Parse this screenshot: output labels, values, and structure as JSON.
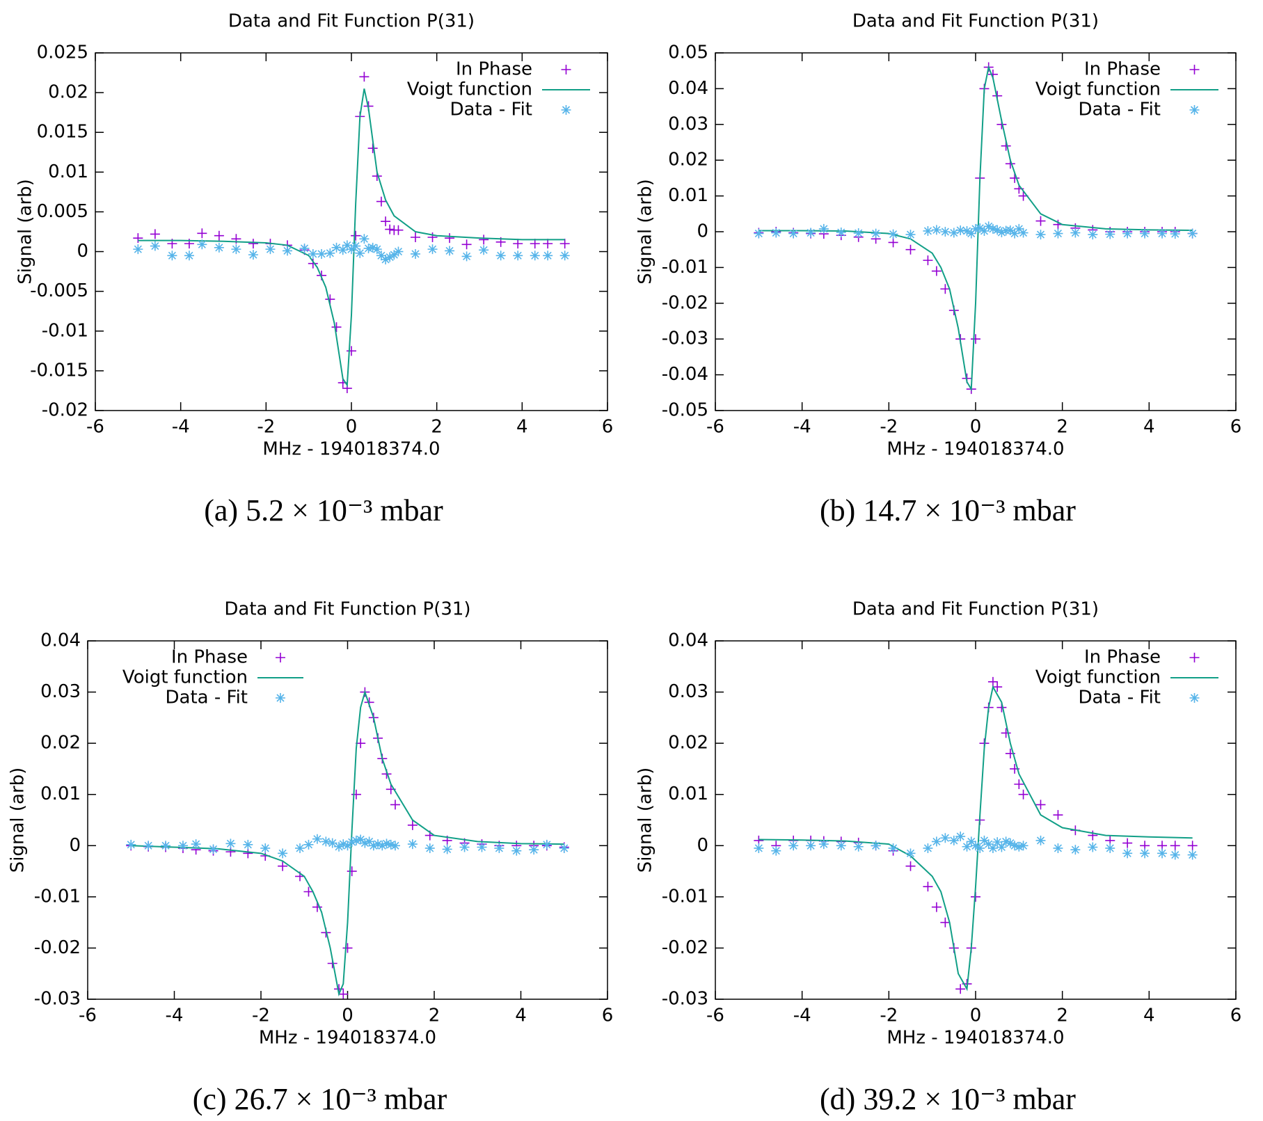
{
  "chart_data": [
    {
      "type": "scatter",
      "title": "Data and Fit Function P(31)",
      "xlabel": "MHz - 194018374.0",
      "ylabel": "Signal (arb)",
      "caption": "(a) 5.2 × 10⁻³ mbar",
      "xlim": [
        -6,
        6
      ],
      "xticks": [
        -6,
        -4,
        -2,
        0,
        2,
        4,
        6
      ],
      "ylim": [
        -0.02,
        0.025
      ],
      "yticks": [
        -0.02,
        -0.015,
        -0.01,
        -0.005,
        0,
        0.005,
        0.01,
        0.015,
        0.02,
        0.025
      ],
      "legend": "upper right",
      "series": [
        {
          "name": "In Phase",
          "color": "#9400d3",
          "mode": "plus",
          "x": [
            -5,
            -4.6,
            -4.2,
            -3.8,
            -3.5,
            -3.1,
            -2.7,
            -2.3,
            -1.9,
            -1.5,
            -1.1,
            -0.9,
            -0.7,
            -0.5,
            -0.35,
            -0.2,
            -0.1,
            0,
            0.1,
            0.2,
            0.3,
            0.4,
            0.5,
            0.6,
            0.7,
            0.8,
            0.9,
            1.0,
            1.1,
            1.5,
            1.9,
            2.3,
            2.7,
            3.1,
            3.5,
            3.9,
            4.3,
            4.6,
            5
          ],
          "values": [
            0.0017,
            0.0022,
            0.001,
            0.001,
            0.0023,
            0.002,
            0.0016,
            0.001,
            0.001,
            0.0008,
            0.0002,
            -0.0015,
            -0.003,
            -0.006,
            -0.0095,
            -0.0165,
            -0.0172,
            -0.0125,
            0.002,
            0.017,
            0.022,
            0.0183,
            0.013,
            0.0095,
            0.0063,
            0.0038,
            0.0028,
            0.0027,
            0.0027,
            0.0018,
            0.0018,
            0.0017,
            0.0009,
            0.0015,
            0.0012,
            0.001,
            0.001,
            0.001,
            0.001
          ]
        },
        {
          "name": "Voigt function",
          "color": "#119f87",
          "mode": "line",
          "x": [
            -5,
            -4,
            -3,
            -2,
            -1.5,
            -1,
            -0.8,
            -0.6,
            -0.4,
            -0.2,
            -0.1,
            0,
            0.1,
            0.2,
            0.3,
            0.4,
            0.6,
            0.8,
            1,
            1.5,
            2,
            3,
            4,
            5
          ],
          "values": [
            0.0014,
            0.0014,
            0.0013,
            0.0011,
            0.0008,
            -0.0005,
            -0.002,
            -0.0045,
            -0.009,
            -0.016,
            -0.0168,
            -0.008,
            0.006,
            0.017,
            0.0205,
            0.018,
            0.01,
            0.0065,
            0.0045,
            0.0025,
            0.002,
            0.0017,
            0.0015,
            0.0015
          ]
        },
        {
          "name": "Data - Fit",
          "color": "#56b4e9",
          "mode": "star",
          "x": [
            -5,
            -4.6,
            -4.2,
            -3.8,
            -3.5,
            -3.1,
            -2.7,
            -2.3,
            -1.9,
            -1.5,
            -1.1,
            -0.9,
            -0.7,
            -0.5,
            -0.35,
            -0.2,
            -0.1,
            0,
            0.1,
            0.2,
            0.3,
            0.4,
            0.5,
            0.6,
            0.7,
            0.8,
            0.9,
            1.0,
            1.1,
            1.5,
            1.9,
            2.3,
            2.7,
            3.1,
            3.5,
            3.9,
            4.3,
            4.6,
            5
          ],
          "values": [
            0.0003,
            0.0007,
            -0.0005,
            -0.0005,
            0.0009,
            0.0005,
            0.0003,
            -0.0004,
            0.0003,
            0.0001,
            0.0004,
            -0.0003,
            -0.0003,
            -0.0002,
            0.0005,
            0.0002,
            0.0008,
            0.0003,
            0.0007,
            -0.0002,
            0.0016,
            0.0004,
            0.0005,
            0.0003,
            -0.0005,
            -0.001,
            -0.0007,
            -0.0004,
            0,
            -0.0003,
            0.0003,
            0.0001,
            -0.0006,
            0.0002,
            -0.0005,
            -0.0005,
            -0.0005,
            -0.0005,
            -0.0005
          ]
        }
      ]
    },
    {
      "type": "scatter",
      "title": "Data and Fit Function P(31)",
      "xlabel": "MHz - 194018374.0",
      "ylabel": "Signal (arb)",
      "caption": "(b) 14.7 × 10⁻³ mbar",
      "xlim": [
        -6,
        6
      ],
      "xticks": [
        -6,
        -4,
        -2,
        0,
        2,
        4,
        6
      ],
      "ylim": [
        -0.05,
        0.05
      ],
      "yticks": [
        -0.05,
        -0.04,
        -0.03,
        -0.02,
        -0.01,
        0,
        0.01,
        0.02,
        0.03,
        0.04,
        0.05
      ],
      "legend": "upper right",
      "series": [
        {
          "name": "In Phase",
          "color": "#9400d3",
          "mode": "plus",
          "x": [
            -5,
            -4.6,
            -4.2,
            -3.8,
            -3.5,
            -3.1,
            -2.7,
            -2.3,
            -1.9,
            -1.5,
            -1.1,
            -0.9,
            -0.7,
            -0.5,
            -0.35,
            -0.2,
            -0.1,
            0,
            0.1,
            0.2,
            0.3,
            0.4,
            0.5,
            0.6,
            0.7,
            0.8,
            0.9,
            1.0,
            1.1,
            1.5,
            1.9,
            2.3,
            2.7,
            3.1,
            3.5,
            3.9,
            4.3,
            4.6,
            5
          ],
          "values": [
            -0.0003,
            0,
            -0.0003,
            -0.0005,
            -0.0006,
            -0.001,
            -0.0015,
            -0.002,
            -0.003,
            -0.005,
            -0.008,
            -0.011,
            -0.016,
            -0.022,
            -0.03,
            -0.041,
            -0.044,
            -0.03,
            0.015,
            0.04,
            0.046,
            0.044,
            0.038,
            0.03,
            0.024,
            0.019,
            0.015,
            0.012,
            0.01,
            0.003,
            0.002,
            0.001,
            0.0005,
            0,
            0,
            0,
            0,
            0,
            -0.0005
          ]
        },
        {
          "name": "Voigt function",
          "color": "#119f87",
          "mode": "line",
          "x": [
            -5,
            -4,
            -3,
            -2,
            -1.5,
            -1,
            -0.8,
            -0.6,
            -0.4,
            -0.2,
            -0.1,
            0,
            0.1,
            0.2,
            0.3,
            0.4,
            0.6,
            0.8,
            1,
            1.5,
            2,
            3,
            4,
            5
          ],
          "values": [
            0.0003,
            0.0003,
            0.0002,
            -0.0005,
            -0.002,
            -0.006,
            -0.01,
            -0.016,
            -0.027,
            -0.042,
            -0.044,
            -0.02,
            0.015,
            0.04,
            0.046,
            0.043,
            0.031,
            0.02,
            0.013,
            0.005,
            0.002,
            0.0008,
            0.0005,
            0.0004
          ]
        },
        {
          "name": "Data - Fit",
          "color": "#56b4e9",
          "mode": "star",
          "x": [
            -5,
            -4.6,
            -4.2,
            -3.8,
            -3.5,
            -3.1,
            -2.7,
            -2.3,
            -1.9,
            -1.5,
            -1.1,
            -0.9,
            -0.7,
            -0.5,
            -0.35,
            -0.2,
            -0.1,
            0,
            0.1,
            0.2,
            0.3,
            0.4,
            0.5,
            0.6,
            0.7,
            0.8,
            0.9,
            1.0,
            1.1,
            1.5,
            1.9,
            2.3,
            2.7,
            3.1,
            3.5,
            3.9,
            4.3,
            4.6,
            5
          ],
          "values": [
            -0.0005,
            -0.0003,
            -0.0005,
            -0.0003,
            0.0008,
            -0.0002,
            -0.0004,
            -0.0005,
            -0.0007,
            -0.0008,
            0.0002,
            0.0005,
            0,
            -0.0003,
            0.0004,
            0.0002,
            -0.0005,
            0.0008,
            0.001,
            0.0002,
            0.0015,
            0.0008,
            0.0005,
            -0.0002,
            0.0003,
            0.0004,
            -0.0005,
            0.0008,
            -0.0003,
            -0.0008,
            -0.0005,
            -0.0003,
            -0.0008,
            -0.0007,
            -0.0005,
            -0.0005,
            -0.0005,
            -0.0006,
            -0.0005
          ]
        }
      ]
    },
    {
      "type": "scatter",
      "title": "Data and Fit Function P(31)",
      "xlabel": "MHz - 194018374.0",
      "ylabel": "Signal (arb)",
      "caption": "(c) 26.7 × 10⁻³ mbar",
      "xlim": [
        -6,
        6
      ],
      "xticks": [
        -6,
        -4,
        -2,
        0,
        2,
        4,
        6
      ],
      "ylim": [
        -0.03,
        0.04
      ],
      "yticks": [
        -0.03,
        -0.02,
        -0.01,
        0,
        0.01,
        0.02,
        0.03,
        0.04
      ],
      "legend": "upper left",
      "series": [
        {
          "name": "In Phase",
          "color": "#9400d3",
          "mode": "plus",
          "x": [
            -5,
            -4.6,
            -4.2,
            -3.8,
            -3.5,
            -3.1,
            -2.7,
            -2.3,
            -1.9,
            -1.5,
            -1.1,
            -0.9,
            -0.7,
            -0.5,
            -0.35,
            -0.2,
            -0.1,
            0,
            0.1,
            0.2,
            0.3,
            0.4,
            0.5,
            0.6,
            0.7,
            0.8,
            0.9,
            1.0,
            1.1,
            1.5,
            1.9,
            2.3,
            2.7,
            3.1,
            3.5,
            3.9,
            4.3,
            4.6,
            5
          ],
          "values": [
            0,
            -0.0002,
            -0.0003,
            -0.0005,
            -0.0008,
            -0.001,
            -0.0012,
            -0.0015,
            -0.002,
            -0.004,
            -0.006,
            -0.009,
            -0.012,
            -0.017,
            -0.023,
            -0.028,
            -0.029,
            -0.02,
            -0.005,
            0.01,
            0.02,
            0.03,
            0.028,
            0.025,
            0.021,
            0.017,
            0.014,
            0.011,
            0.008,
            0.004,
            0.002,
            0.001,
            0.0005,
            0.0003,
            0,
            0,
            0,
            0,
            -0.0003
          ]
        },
        {
          "name": "Voigt function",
          "color": "#119f87",
          "mode": "line",
          "x": [
            -5,
            -4,
            -3,
            -2,
            -1.5,
            -1,
            -0.8,
            -0.6,
            -0.4,
            -0.2,
            -0.1,
            0,
            0.1,
            0.2,
            0.3,
            0.4,
            0.6,
            0.8,
            1,
            1.5,
            2,
            3,
            4,
            5
          ],
          "values": [
            0,
            -0.0003,
            -0.0006,
            -0.0015,
            -0.003,
            -0.006,
            -0.009,
            -0.013,
            -0.02,
            -0.029,
            -0.027,
            -0.015,
            0.003,
            0.019,
            0.027,
            0.03,
            0.025,
            0.017,
            0.012,
            0.005,
            0.002,
            0.0008,
            0.0004,
            0.0003
          ]
        },
        {
          "name": "Data - Fit",
          "color": "#56b4e9",
          "mode": "star",
          "x": [
            -5,
            -4.6,
            -4.2,
            -3.8,
            -3.5,
            -3.1,
            -2.7,
            -2.3,
            -1.9,
            -1.5,
            -1.1,
            -0.9,
            -0.7,
            -0.5,
            -0.35,
            -0.2,
            -0.1,
            0,
            0.1,
            0.2,
            0.3,
            0.4,
            0.5,
            0.6,
            0.7,
            0.8,
            0.9,
            1.0,
            1.1,
            1.5,
            1.9,
            2.3,
            2.7,
            3.1,
            3.5,
            3.9,
            4.3,
            4.6,
            5
          ],
          "values": [
            0.0002,
            0,
            0,
            0,
            0.0003,
            -0.0007,
            0.0004,
            0.0002,
            -0.0005,
            -0.0015,
            -0.0005,
            0.0002,
            0.0013,
            0.0008,
            0.0005,
            -0.0002,
            0.0003,
            0,
            0.0007,
            0.001,
            0.0012,
            0.0005,
            0.0008,
            0,
            0.0003,
            0,
            0.0004,
            0.0002,
            0,
            0.0003,
            -0.0005,
            -0.0007,
            -0.0003,
            -0.0003,
            -0.0005,
            -0.001,
            -0.0008,
            0.0002,
            -0.0005
          ]
        }
      ]
    },
    {
      "type": "scatter",
      "title": "Data and Fit Function P(31)",
      "xlabel": "MHz - 194018374.0",
      "ylabel": "Signal (arb)",
      "caption": "(d) 39.2 × 10⁻³ mbar",
      "xlim": [
        -6,
        6
      ],
      "xticks": [
        -6,
        -4,
        -2,
        0,
        2,
        4,
        6
      ],
      "ylim": [
        -0.03,
        0.04
      ],
      "yticks": [
        -0.03,
        -0.02,
        -0.01,
        0,
        0.01,
        0.02,
        0.03,
        0.04
      ],
      "legend": "upper right",
      "series": [
        {
          "name": "In Phase",
          "color": "#9400d3",
          "mode": "plus",
          "x": [
            -5,
            -4.6,
            -4.2,
            -3.8,
            -3.5,
            -3.1,
            -2.7,
            -2.3,
            -1.9,
            -1.5,
            -1.1,
            -0.9,
            -0.7,
            -0.5,
            -0.35,
            -0.2,
            -0.1,
            0,
            0.1,
            0.2,
            0.3,
            0.4,
            0.5,
            0.6,
            0.7,
            0.8,
            0.9,
            1.0,
            1.1,
            1.5,
            1.9,
            2.3,
            2.7,
            3.1,
            3.5,
            3.9,
            4.3,
            4.6,
            5
          ],
          "values": [
            0.001,
            0,
            0.001,
            0.001,
            0.0009,
            0.0008,
            0.0006,
            0,
            -0.001,
            -0.004,
            -0.008,
            -0.012,
            -0.015,
            -0.02,
            -0.028,
            -0.027,
            -0.02,
            -0.01,
            0.005,
            0.02,
            0.027,
            0.032,
            0.031,
            0.027,
            0.022,
            0.018,
            0.015,
            0.012,
            0.01,
            0.008,
            0.006,
            0.003,
            0.002,
            0.001,
            0.0005,
            0,
            0,
            0,
            0
          ]
        },
        {
          "name": "Voigt function",
          "color": "#119f87",
          "mode": "line",
          "x": [
            -5,
            -4,
            -3,
            -2,
            -1.5,
            -1,
            -0.8,
            -0.6,
            -0.4,
            -0.2,
            -0.1,
            0,
            0.1,
            0.2,
            0.3,
            0.4,
            0.6,
            0.8,
            1,
            1.5,
            2,
            3,
            4,
            5
          ],
          "values": [
            0.0012,
            0.0011,
            0.0009,
            0.0003,
            -0.002,
            -0.006,
            -0.009,
            -0.015,
            -0.025,
            -0.028,
            -0.02,
            -0.008,
            0.006,
            0.019,
            0.027,
            0.031,
            0.028,
            0.02,
            0.014,
            0.006,
            0.0035,
            0.002,
            0.0017,
            0.0015
          ]
        },
        {
          "name": "Data - Fit",
          "color": "#56b4e9",
          "mode": "star",
          "x": [
            -5,
            -4.6,
            -4.2,
            -3.8,
            -3.5,
            -3.1,
            -2.7,
            -2.3,
            -1.9,
            -1.5,
            -1.1,
            -0.9,
            -0.7,
            -0.5,
            -0.35,
            -0.2,
            -0.1,
            0,
            0.1,
            0.2,
            0.3,
            0.4,
            0.5,
            0.6,
            0.7,
            0.8,
            0.9,
            1.0,
            1.1,
            1.5,
            1.9,
            2.3,
            2.7,
            3.1,
            3.5,
            3.9,
            4.3,
            4.6,
            5
          ],
          "values": [
            -0.0005,
            -0.001,
            0,
            0,
            0.0003,
            0,
            -0.0002,
            0,
            -0.0005,
            -0.0015,
            -0.0005,
            0.0008,
            0.0015,
            0.001,
            0.0018,
            -0.0002,
            0.0008,
            0,
            -0.0005,
            0.001,
            0.0003,
            -0.0005,
            0.0007,
            -0.0003,
            0.0008,
            0.0005,
            0,
            -0.0002,
            0,
            0.001,
            -0.0005,
            -0.0008,
            -0.0003,
            -0.0005,
            -0.0015,
            -0.0015,
            -0.0015,
            -0.0018,
            -0.0018
          ]
        }
      ]
    }
  ]
}
